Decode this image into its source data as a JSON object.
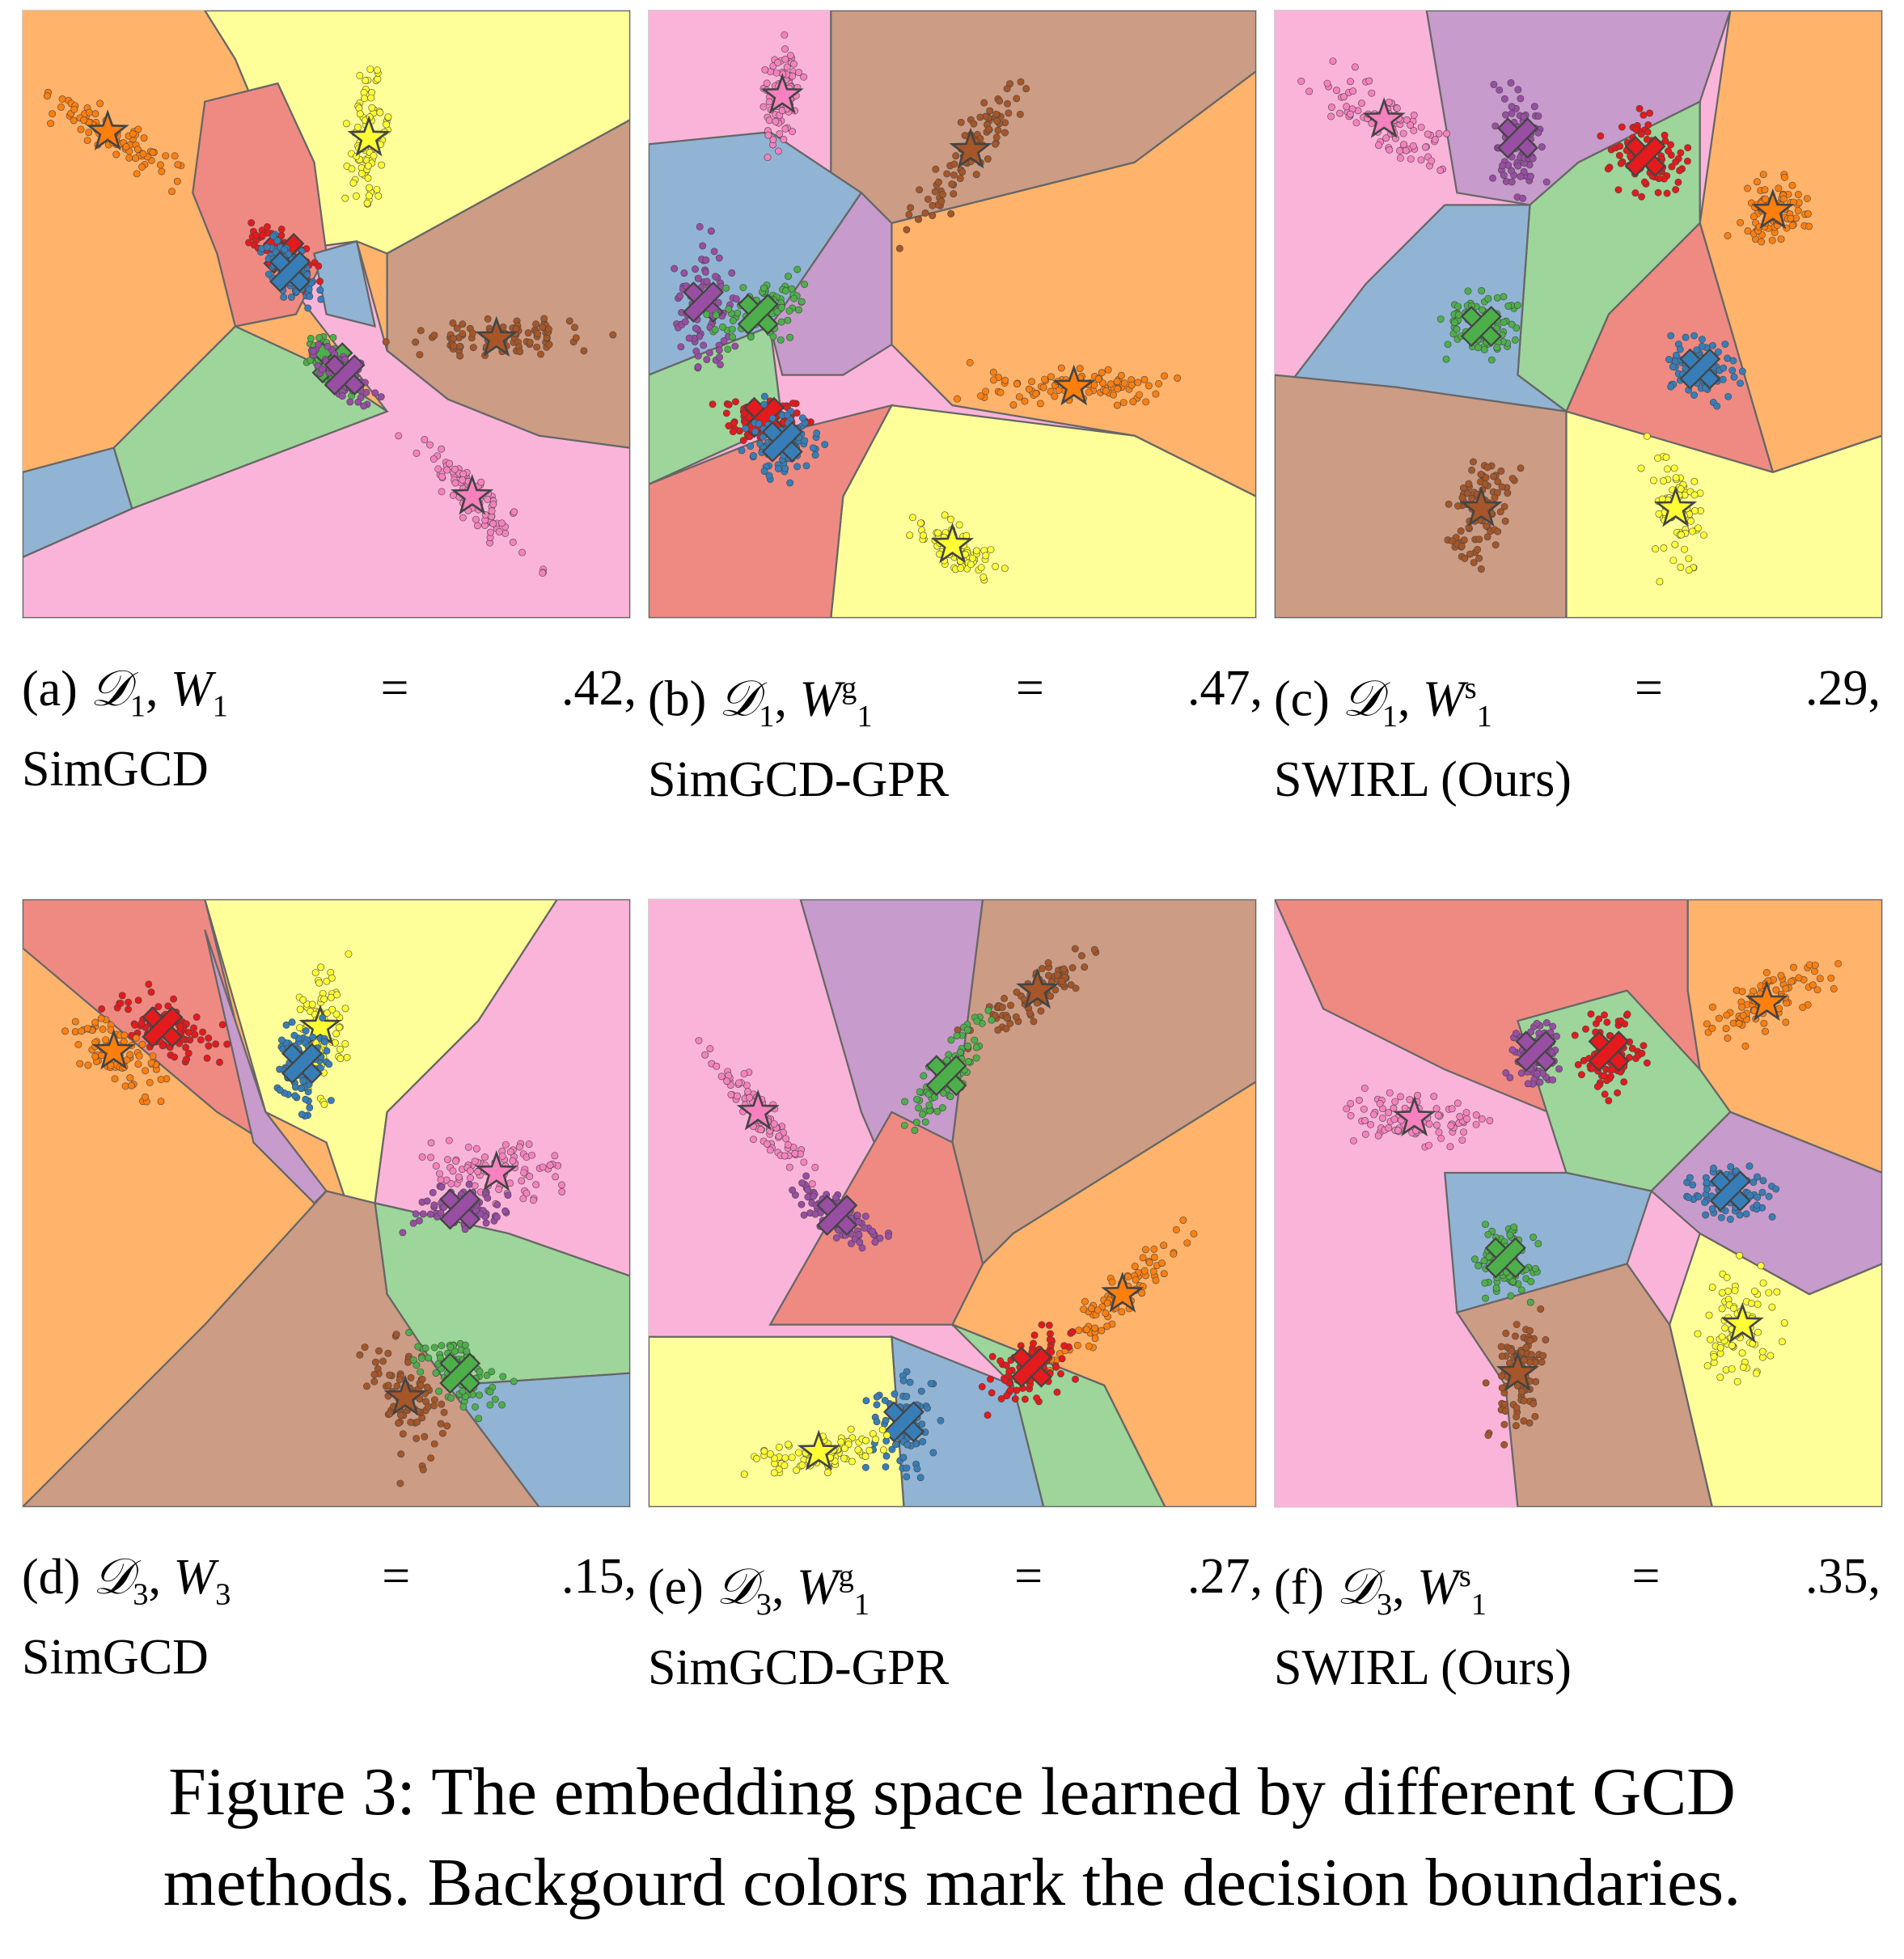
{
  "figure": {
    "number_label": "Figure 3:",
    "caption_line1": "The embedding space learned by different GCD",
    "caption_line2": "methods. Backgourd colors mark the decision boundaries."
  },
  "panels": [
    {
      "id": "a",
      "tag": "(a)",
      "dataset": "D",
      "dataset_sub": "1",
      "metric": "W",
      "metric_sub": "1",
      "metric_sup": "",
      "value": ".42,",
      "method": "SimGCD"
    },
    {
      "id": "b",
      "tag": "(b)",
      "dataset": "D",
      "dataset_sub": "1",
      "metric": "W",
      "metric_sub": "1",
      "metric_sup": "g",
      "value": ".47,",
      "method": "SimGCD-GPR"
    },
    {
      "id": "c",
      "tag": "(c)",
      "dataset": "D",
      "dataset_sub": "1",
      "metric": "W",
      "metric_sub": "1",
      "metric_sup": "s",
      "value": ".29,",
      "method": "SWIRL (Ours)"
    },
    {
      "id": "d",
      "tag": "(d)",
      "dataset": "D",
      "dataset_sub": "3",
      "metric": "W",
      "metric_sub": "3",
      "metric_sup": "",
      "value": ".15,",
      "method": "SimGCD"
    },
    {
      "id": "e",
      "tag": "(e)",
      "dataset": "D",
      "dataset_sub": "3",
      "metric": "W",
      "metric_sub": "1",
      "metric_sup": "g",
      "value": ".27,",
      "method": "SimGCD-GPR"
    },
    {
      "id": "f",
      "tag": "(f)",
      "dataset": "D",
      "dataset_sub": "3",
      "metric": "W",
      "metric_sub": "1",
      "metric_sup": "s",
      "value": ".35,",
      "method": "SWIRL (Ours)"
    }
  ],
  "colors": {
    "orange": "#ff7f0e",
    "orange_bg": "#ffb36b",
    "yellow": "#ffff33",
    "yellow_bg": "#ffff99",
    "brown": "#a65628",
    "brown_bg": "#cc9c85",
    "pink": "#f781bf",
    "pink_bg": "#fbb4d9",
    "red": "#e41a1c",
    "red_bg": "#ef8a82",
    "blue": "#377eb8",
    "blue_bg": "#91b4d4",
    "green": "#4daf4a",
    "green_bg": "#9ed59a",
    "purple": "#984ea3",
    "purple_bg": "#c79bcb"
  }
}
